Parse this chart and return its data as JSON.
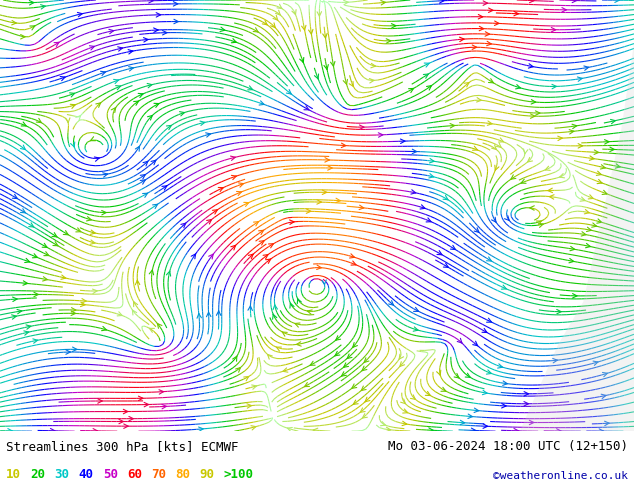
{
  "title_left": "Streamlines 300 hPa [kts] ECMWF",
  "title_right": "Mo 03-06-2024 18:00 UTC (12+150)",
  "watermark": "©weatheronline.co.uk",
  "legend_values": [
    "10",
    "20",
    "30",
    "40",
    "50",
    "60",
    "70",
    "80",
    "90",
    ">100"
  ],
  "legend_colors": [
    "#c8c800",
    "#00c800",
    "#00c8c8",
    "#0000ff",
    "#c800c8",
    "#ff0000",
    "#ff6400",
    "#ffaa00",
    "#c8c800",
    "#00c800"
  ],
  "background_color": "#ffffff",
  "map_bg": "#e8f8e8",
  "figsize": [
    6.34,
    4.9
  ],
  "dpi": 100
}
